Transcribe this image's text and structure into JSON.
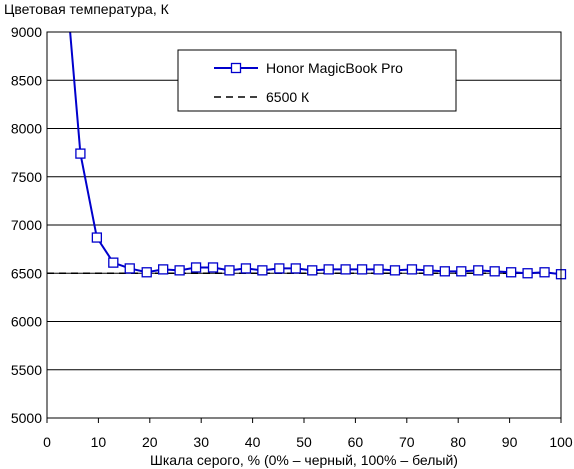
{
  "chart_data": {
    "type": "line",
    "title": "",
    "ylabel": "Цветовая температура, К",
    "xlabel": "Шкала серого, % (0% – черный, 100% – белый)",
    "xlim": [
      0,
      100
    ],
    "ylim": [
      5000,
      9000
    ],
    "x_ticks": [
      0,
      10,
      20,
      30,
      40,
      50,
      60,
      70,
      80,
      90,
      100
    ],
    "y_ticks": [
      5000,
      5500,
      6000,
      6500,
      7000,
      7500,
      8000,
      8500,
      9000
    ],
    "grid": "horizontal",
    "legend_position": "top-right",
    "series": [
      {
        "name": "Honor MagicBook Pro",
        "color": "#0000cc",
        "marker": "open-square",
        "x": [
          4.5,
          6.5,
          9.7,
          12.9,
          16.1,
          19.4,
          22.6,
          25.8,
          29.0,
          32.3,
          35.5,
          38.7,
          41.9,
          45.2,
          48.4,
          51.6,
          54.8,
          58.1,
          61.3,
          64.5,
          67.7,
          71.0,
          74.2,
          77.4,
          80.6,
          83.9,
          87.1,
          90.3,
          93.5,
          96.8,
          100
        ],
        "values": [
          9000,
          7740,
          6870,
          6610,
          6550,
          6510,
          6540,
          6530,
          6560,
          6560,
          6530,
          6550,
          6530,
          6550,
          6550,
          6530,
          6540,
          6540,
          6540,
          6540,
          6530,
          6540,
          6530,
          6520,
          6520,
          6530,
          6520,
          6510,
          6500,
          6510,
          6490
        ]
      },
      {
        "name": "6500 К",
        "color": "#000000",
        "style": "dashed",
        "x": [
          0,
          100
        ],
        "values": [
          6500,
          6500
        ]
      }
    ]
  }
}
